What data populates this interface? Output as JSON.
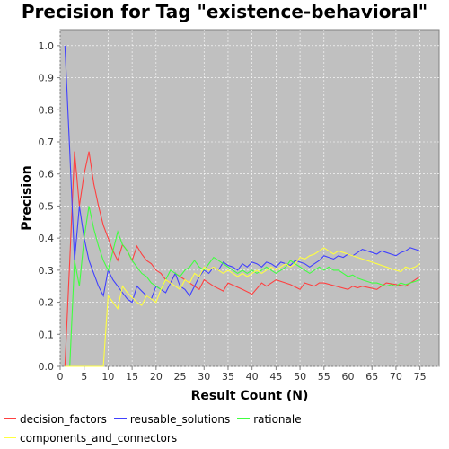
{
  "chart_data": {
    "type": "line",
    "title": "Precision for Tag \"existence-behavioral\"",
    "xlabel": "Result Count (N)",
    "ylabel": "Precision",
    "xlim": [
      0,
      79
    ],
    "ylim": [
      0,
      1.05
    ],
    "xticks": [
      0,
      5,
      10,
      15,
      20,
      25,
      30,
      35,
      40,
      45,
      50,
      55,
      60,
      65,
      70,
      75
    ],
    "yticks": [
      0.0,
      0.1,
      0.2,
      0.3,
      0.4,
      0.5,
      0.6,
      0.7,
      0.8,
      0.9,
      1.0
    ],
    "grid": true,
    "legend_position": "bottom",
    "background": "#c0c0c0",
    "series": [
      {
        "name": "decision_factors",
        "color": "#ff4040",
        "points": [
          [
            1,
            0.0
          ],
          [
            2,
            0.33
          ],
          [
            3,
            0.67
          ],
          [
            4,
            0.5
          ],
          [
            5,
            0.6
          ],
          [
            6,
            0.67
          ],
          [
            7,
            0.57
          ],
          [
            8,
            0.5
          ],
          [
            9,
            0.44
          ],
          [
            10,
            0.4
          ],
          [
            11,
            0.36
          ],
          [
            12,
            0.33
          ],
          [
            13,
            0.38
          ],
          [
            14,
            0.36
          ],
          [
            15,
            0.33
          ],
          [
            16,
            0.375
          ],
          [
            17,
            0.35
          ],
          [
            18,
            0.33
          ],
          [
            19,
            0.32
          ],
          [
            20,
            0.3
          ],
          [
            21,
            0.29
          ],
          [
            22,
            0.27
          ],
          [
            23,
            0.26
          ],
          [
            24,
            0.29
          ],
          [
            25,
            0.28
          ],
          [
            26,
            0.27
          ],
          [
            27,
            0.26
          ],
          [
            28,
            0.25
          ],
          [
            29,
            0.24
          ],
          [
            30,
            0.27
          ],
          [
            32,
            0.25
          ],
          [
            34,
            0.235
          ],
          [
            35,
            0.26
          ],
          [
            38,
            0.24
          ],
          [
            40,
            0.225
          ],
          [
            42,
            0.26
          ],
          [
            43,
            0.25
          ],
          [
            45,
            0.27
          ],
          [
            48,
            0.255
          ],
          [
            50,
            0.24
          ],
          [
            51,
            0.26
          ],
          [
            53,
            0.25
          ],
          [
            54,
            0.26
          ],
          [
            55,
            0.26
          ],
          [
            60,
            0.24
          ],
          [
            61,
            0.25
          ],
          [
            62,
            0.245
          ],
          [
            63,
            0.25
          ],
          [
            66,
            0.24
          ],
          [
            68,
            0.26
          ],
          [
            72,
            0.25
          ],
          [
            74,
            0.27
          ],
          [
            75,
            0.28
          ]
        ]
      },
      {
        "name": "reusable_solutions",
        "color": "#4040ff",
        "points": [
          [
            1,
            1.0
          ],
          [
            2,
            0.67
          ],
          [
            3,
            0.33
          ],
          [
            4,
            0.5
          ],
          [
            5,
            0.4
          ],
          [
            6,
            0.33
          ],
          [
            7,
            0.29
          ],
          [
            8,
            0.25
          ],
          [
            9,
            0.22
          ],
          [
            10,
            0.3
          ],
          [
            11,
            0.27
          ],
          [
            12,
            0.25
          ],
          [
            13,
            0.23
          ],
          [
            14,
            0.21
          ],
          [
            15,
            0.2
          ],
          [
            16,
            0.25
          ],
          [
            17,
            0.235
          ],
          [
            18,
            0.22
          ],
          [
            19,
            0.21
          ],
          [
            20,
            0.25
          ],
          [
            21,
            0.24
          ],
          [
            22,
            0.23
          ],
          [
            23,
            0.26
          ],
          [
            24,
            0.29
          ],
          [
            25,
            0.25
          ],
          [
            26,
            0.24
          ],
          [
            27,
            0.22
          ],
          [
            28,
            0.25
          ],
          [
            29,
            0.28
          ],
          [
            30,
            0.3
          ],
          [
            31,
            0.29
          ],
          [
            32,
            0.31
          ],
          [
            33,
            0.3
          ],
          [
            34,
            0.325
          ],
          [
            35,
            0.315
          ],
          [
            36,
            0.31
          ],
          [
            37,
            0.3
          ],
          [
            38,
            0.32
          ],
          [
            39,
            0.31
          ],
          [
            40,
            0.325
          ],
          [
            41,
            0.32
          ],
          [
            42,
            0.31
          ],
          [
            43,
            0.325
          ],
          [
            44,
            0.32
          ],
          [
            45,
            0.31
          ],
          [
            46,
            0.325
          ],
          [
            47,
            0.32
          ],
          [
            48,
            0.315
          ],
          [
            49,
            0.33
          ],
          [
            50,
            0.325
          ],
          [
            51,
            0.32
          ],
          [
            52,
            0.31
          ],
          [
            53,
            0.32
          ],
          [
            54,
            0.33
          ],
          [
            55,
            0.345
          ],
          [
            56,
            0.34
          ],
          [
            57,
            0.335
          ],
          [
            58,
            0.345
          ],
          [
            59,
            0.34
          ],
          [
            60,
            0.35
          ],
          [
            61,
            0.345
          ],
          [
            62,
            0.355
          ],
          [
            63,
            0.365
          ],
          [
            64,
            0.36
          ],
          [
            65,
            0.355
          ],
          [
            66,
            0.35
          ],
          [
            67,
            0.36
          ],
          [
            68,
            0.355
          ],
          [
            69,
            0.35
          ],
          [
            70,
            0.345
          ],
          [
            71,
            0.355
          ],
          [
            72,
            0.36
          ],
          [
            73,
            0.37
          ],
          [
            74,
            0.365
          ],
          [
            75,
            0.36
          ]
        ]
      },
      {
        "name": "rationale",
        "color": "#40ff40",
        "points": [
          [
            1,
            0.0
          ],
          [
            2,
            0.0
          ],
          [
            3,
            0.33
          ],
          [
            4,
            0.25
          ],
          [
            5,
            0.4
          ],
          [
            6,
            0.5
          ],
          [
            7,
            0.43
          ],
          [
            8,
            0.375
          ],
          [
            9,
            0.33
          ],
          [
            10,
            0.3
          ],
          [
            11,
            0.36
          ],
          [
            12,
            0.42
          ],
          [
            13,
            0.38
          ],
          [
            14,
            0.36
          ],
          [
            15,
            0.33
          ],
          [
            16,
            0.31
          ],
          [
            17,
            0.29
          ],
          [
            18,
            0.28
          ],
          [
            19,
            0.26
          ],
          [
            20,
            0.25
          ],
          [
            21,
            0.24
          ],
          [
            22,
            0.27
          ],
          [
            23,
            0.3
          ],
          [
            24,
            0.29
          ],
          [
            25,
            0.28
          ],
          [
            26,
            0.3
          ],
          [
            27,
            0.31
          ],
          [
            28,
            0.33
          ],
          [
            29,
            0.31
          ],
          [
            30,
            0.3
          ],
          [
            31,
            0.32
          ],
          [
            32,
            0.34
          ],
          [
            33,
            0.33
          ],
          [
            34,
            0.32
          ],
          [
            35,
            0.31
          ],
          [
            36,
            0.3
          ],
          [
            37,
            0.29
          ],
          [
            38,
            0.3
          ],
          [
            39,
            0.29
          ],
          [
            40,
            0.3
          ],
          [
            41,
            0.29
          ],
          [
            42,
            0.3
          ],
          [
            43,
            0.31
          ],
          [
            44,
            0.3
          ],
          [
            45,
            0.29
          ],
          [
            46,
            0.3
          ],
          [
            47,
            0.31
          ],
          [
            48,
            0.33
          ],
          [
            49,
            0.32
          ],
          [
            50,
            0.31
          ],
          [
            51,
            0.3
          ],
          [
            52,
            0.29
          ],
          [
            53,
            0.3
          ],
          [
            54,
            0.31
          ],
          [
            55,
            0.3
          ],
          [
            56,
            0.31
          ],
          [
            57,
            0.3
          ],
          [
            58,
            0.3
          ],
          [
            59,
            0.29
          ],
          [
            60,
            0.28
          ],
          [
            61,
            0.285
          ],
          [
            62,
            0.275
          ],
          [
            63,
            0.27
          ],
          [
            64,
            0.265
          ],
          [
            65,
            0.26
          ],
          [
            66,
            0.26
          ],
          [
            67,
            0.255
          ],
          [
            68,
            0.25
          ],
          [
            69,
            0.255
          ],
          [
            70,
            0.25
          ],
          [
            71,
            0.26
          ],
          [
            72,
            0.255
          ],
          [
            73,
            0.26
          ],
          [
            74,
            0.265
          ],
          [
            75,
            0.27
          ]
        ]
      },
      {
        "name": "components_and_connectors",
        "color": "#ffff40",
        "points": [
          [
            1,
            0.0
          ],
          [
            2,
            0.0
          ],
          [
            3,
            0.0
          ],
          [
            4,
            0.0
          ],
          [
            5,
            0.0
          ],
          [
            6,
            0.0
          ],
          [
            7,
            0.0
          ],
          [
            8,
            0.0
          ],
          [
            9,
            0.0
          ],
          [
            10,
            0.22
          ],
          [
            11,
            0.2
          ],
          [
            12,
            0.18
          ],
          [
            13,
            0.25
          ],
          [
            14,
            0.23
          ],
          [
            15,
            0.215
          ],
          [
            16,
            0.2
          ],
          [
            17,
            0.19
          ],
          [
            18,
            0.22
          ],
          [
            19,
            0.21
          ],
          [
            20,
            0.2
          ],
          [
            21,
            0.24
          ],
          [
            22,
            0.27
          ],
          [
            23,
            0.26
          ],
          [
            24,
            0.25
          ],
          [
            25,
            0.24
          ],
          [
            26,
            0.27
          ],
          [
            27,
            0.26
          ],
          [
            28,
            0.29
          ],
          [
            29,
            0.28
          ],
          [
            30,
            0.31
          ],
          [
            31,
            0.3
          ],
          [
            32,
            0.31
          ],
          [
            33,
            0.3
          ],
          [
            34,
            0.29
          ],
          [
            35,
            0.3
          ],
          [
            36,
            0.29
          ],
          [
            37,
            0.28
          ],
          [
            38,
            0.29
          ],
          [
            39,
            0.28
          ],
          [
            40,
            0.29
          ],
          [
            41,
            0.3
          ],
          [
            42,
            0.29
          ],
          [
            43,
            0.3
          ],
          [
            44,
            0.31
          ],
          [
            45,
            0.3
          ],
          [
            46,
            0.31
          ],
          [
            47,
            0.32
          ],
          [
            48,
            0.31
          ],
          [
            49,
            0.32
          ],
          [
            50,
            0.34
          ],
          [
            51,
            0.335
          ],
          [
            52,
            0.345
          ],
          [
            53,
            0.35
          ],
          [
            54,
            0.36
          ],
          [
            55,
            0.37
          ],
          [
            56,
            0.36
          ],
          [
            57,
            0.35
          ],
          [
            58,
            0.36
          ],
          [
            59,
            0.355
          ],
          [
            60,
            0.35
          ],
          [
            61,
            0.345
          ],
          [
            62,
            0.34
          ],
          [
            63,
            0.335
          ],
          [
            64,
            0.33
          ],
          [
            65,
            0.325
          ],
          [
            66,
            0.32
          ],
          [
            67,
            0.315
          ],
          [
            68,
            0.31
          ],
          [
            69,
            0.305
          ],
          [
            70,
            0.3
          ],
          [
            71,
            0.295
          ],
          [
            72,
            0.31
          ],
          [
            73,
            0.305
          ],
          [
            74,
            0.31
          ],
          [
            75,
            0.32
          ]
        ]
      }
    ]
  }
}
